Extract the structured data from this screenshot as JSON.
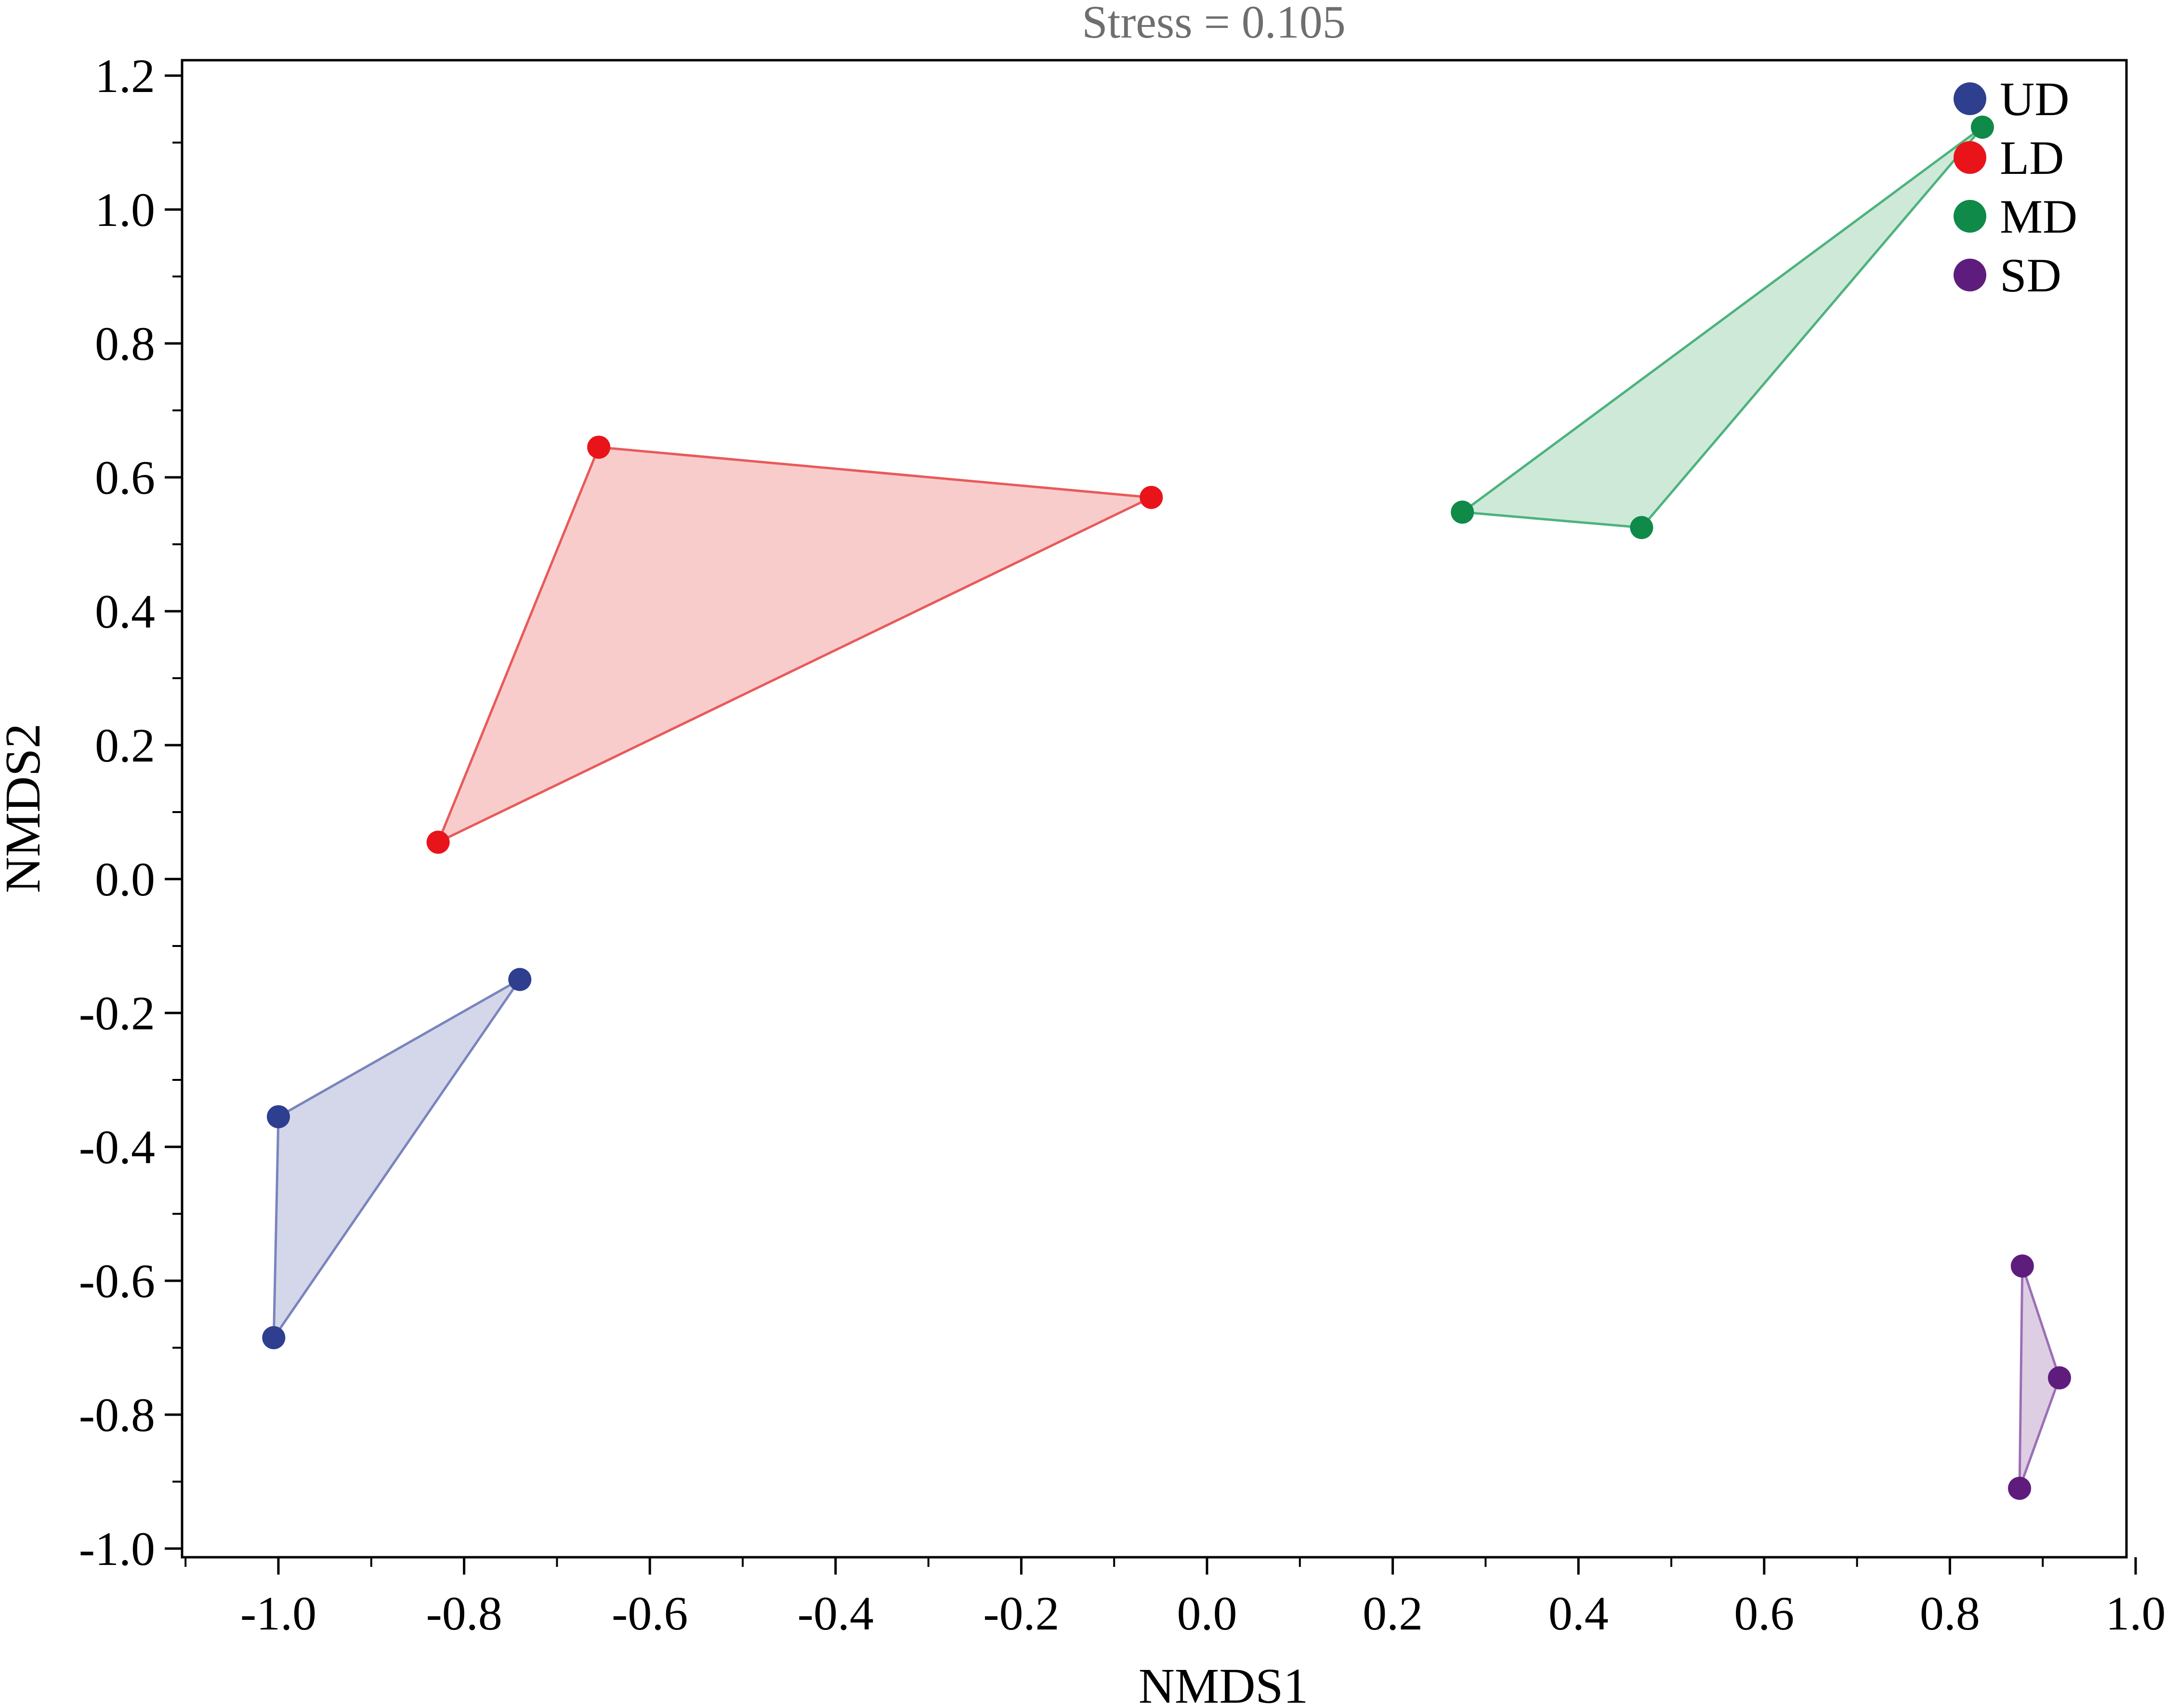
{
  "chart_data": {
    "type": "scatter",
    "title": "Stress = 0.105",
    "xlabel": "NMDS1",
    "ylabel": "NMDS2",
    "xlim": [
      -1.1,
      1.0
    ],
    "ylim": [
      -1.02,
      1.22
    ],
    "x_ticks": [
      -1.0,
      -0.8,
      -0.6,
      -0.4,
      -0.2,
      0.0,
      0.2,
      0.4,
      0.6,
      0.8,
      1.0
    ],
    "x_tick_labels": [
      "-1.0",
      "-0.8",
      "-0.6",
      "-0.4",
      "-0.2",
      "0.0",
      "0.2",
      "0.4",
      "0.6",
      "0.8",
      "1.0"
    ],
    "y_ticks": [
      1.2,
      1.0,
      0.8,
      0.6,
      0.4,
      0.2,
      0.0,
      -0.2,
      -0.4,
      -0.6,
      -0.8,
      -1.0
    ],
    "y_tick_labels": [
      "1.2",
      "1.0",
      "0.8",
      "0.6",
      "0.4",
      "0.2",
      "0.0",
      "-0.2",
      "-0.4",
      "-0.6",
      "-0.8",
      "-1.0"
    ],
    "grid": false,
    "legend_position": "top-right",
    "series": [
      {
        "name": "UD",
        "color": "#2e3f8f",
        "fill": "#d2d5e8",
        "line": "#7a84bd",
        "points": [
          [
            -0.74,
            -0.15
          ],
          [
            -1.0,
            -0.355
          ],
          [
            -1.005,
            -0.685
          ]
        ]
      },
      {
        "name": "LD",
        "color": "#e8141a",
        "fill": "#f9c9c9",
        "line": "#e85a5a",
        "points": [
          [
            -0.655,
            0.645
          ],
          [
            -0.06,
            0.57
          ],
          [
            -0.828,
            0.055
          ]
        ]
      },
      {
        "name": "MD",
        "color": "#0f8a48",
        "fill": "#cce8d7",
        "line": "#4db37e",
        "points": [
          [
            0.275,
            0.548
          ],
          [
            0.835,
            1.123
          ],
          [
            0.468,
            0.525
          ]
        ]
      },
      {
        "name": "SD",
        "color": "#5e1d7d",
        "fill": "#dccbe3",
        "line": "#9c6fb5",
        "points": [
          [
            0.878,
            -0.578
          ],
          [
            0.918,
            -0.745
          ],
          [
            0.875,
            -0.91
          ]
        ]
      }
    ]
  }
}
